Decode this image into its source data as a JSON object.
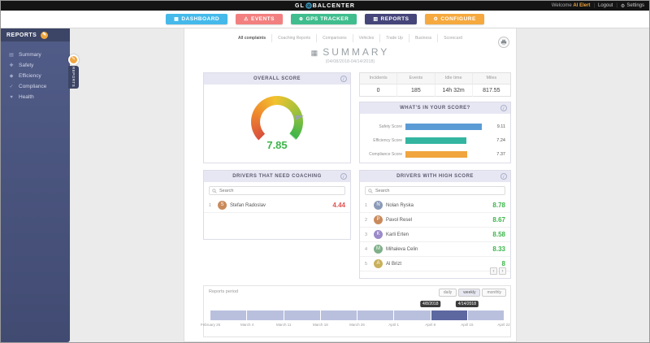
{
  "icons": {
    "gear": "⚙",
    "pencil": "✎",
    "info": "i",
    "prev": "‹",
    "next": "›",
    "title_chart": "▦"
  },
  "topbar": {
    "brand_left": "GL",
    "brand_right": "BALCENTER",
    "welcome": "Welcome",
    "user": "Al Elert",
    "logout": "Logout",
    "settings": "Settings"
  },
  "nav": {
    "buttons": [
      {
        "id": "dashboard",
        "label": "DASHBOARD",
        "glyph": "▦",
        "color": "#44b9ea"
      },
      {
        "id": "events",
        "label": "EVENTS",
        "glyph": "⚠",
        "color": "#f38080"
      },
      {
        "id": "gps-tracker",
        "label": "GPS TRACKER",
        "glyph": "⊕",
        "color": "#3fbd8e"
      },
      {
        "id": "reports",
        "label": "REPORTS",
        "glyph": "▥",
        "color": "#45457a"
      },
      {
        "id": "configure",
        "label": "CONFIGURE",
        "glyph": "⚙",
        "color": "#f5a93f"
      }
    ]
  },
  "sidebar": {
    "title": "REPORTS",
    "items": [
      {
        "id": "summary",
        "label": "Summary",
        "glyph": "▤"
      },
      {
        "id": "safety",
        "label": "Safety",
        "glyph": "✚"
      },
      {
        "id": "efficiency",
        "label": "Efficiency",
        "glyph": "◆"
      },
      {
        "id": "compliance",
        "label": "Compliance",
        "glyph": "✓"
      },
      {
        "id": "health",
        "label": "Health",
        "glyph": "♥"
      }
    ]
  },
  "float_tag": {
    "label": "REPORTS"
  },
  "tabs": {
    "items": [
      "All complaints",
      "Coaching Reports",
      "Comparisons",
      "Vehicles",
      "Trade Up",
      "Business",
      "Scorecard"
    ],
    "active_index": 0
  },
  "page": {
    "title": "SUMMARY",
    "subtitle": "(04/08/2018-04/14/2018)"
  },
  "overall_score": {
    "title": "OVERALL SCORE",
    "value": "7.85"
  },
  "stats": {
    "columns": [
      "Incidents",
      "Events",
      "Idle time",
      "Miles"
    ],
    "values": [
      "0",
      "185",
      "14h 32m",
      "817.55"
    ]
  },
  "score_breakdown": {
    "title": "WHAT'S IN YOUR SCORE?",
    "max": 10,
    "bars": [
      {
        "label": "Safety Score",
        "value": 9.11,
        "display": "9.11",
        "color": "#5b9bd5"
      },
      {
        "label": "Efficiency Score",
        "value": 7.24,
        "display": "7.24",
        "color": "#33b5a0"
      },
      {
        "label": "Compliance Score",
        "value": 7.37,
        "display": "7.37",
        "color": "#f0a53e"
      }
    ]
  },
  "coaching": {
    "title": "DRIVERS THAT NEED COACHING",
    "search_placeholder": "Search",
    "score_color": "#e05252",
    "rows": [
      {
        "rank": "1",
        "name": "Stefan Radoslav",
        "score": "4.44",
        "avatar_color": "#c98a5b"
      }
    ]
  },
  "high_score": {
    "title": "DRIVERS WITH HIGH SCORE",
    "search_placeholder": "Search",
    "score_color": "#3cb54a",
    "rows": [
      {
        "rank": "1",
        "name": "Nolan Ryska",
        "score": "8.78",
        "avatar_color": "#8a9bb8"
      },
      {
        "rank": "2",
        "name": "Pavol Resel",
        "score": "8.67",
        "avatar_color": "#c98a5b"
      },
      {
        "rank": "3",
        "name": "Karli Erten",
        "score": "8.58",
        "avatar_color": "#9b8ac9"
      },
      {
        "rank": "4",
        "name": "Mihaleva Celin",
        "score": "8.33",
        "avatar_color": "#7fb089"
      },
      {
        "rank": "5",
        "name": "Al Brizt",
        "score": "8",
        "avatar_color": "#c9b15b"
      }
    ]
  },
  "timeline": {
    "label": "Reports period",
    "range_buttons": [
      "daily",
      "weekly",
      "monthly"
    ],
    "active_range": "weekly",
    "segment_count": 8,
    "selected_index": 6,
    "tooltip_start": "4/8/2018",
    "tooltip_end": "4/14/2018",
    "ticks": [
      "February 26",
      "March 4",
      "March 11",
      "March 18",
      "March 25",
      "April 1",
      "April 8",
      "April 15",
      "April 22"
    ]
  }
}
